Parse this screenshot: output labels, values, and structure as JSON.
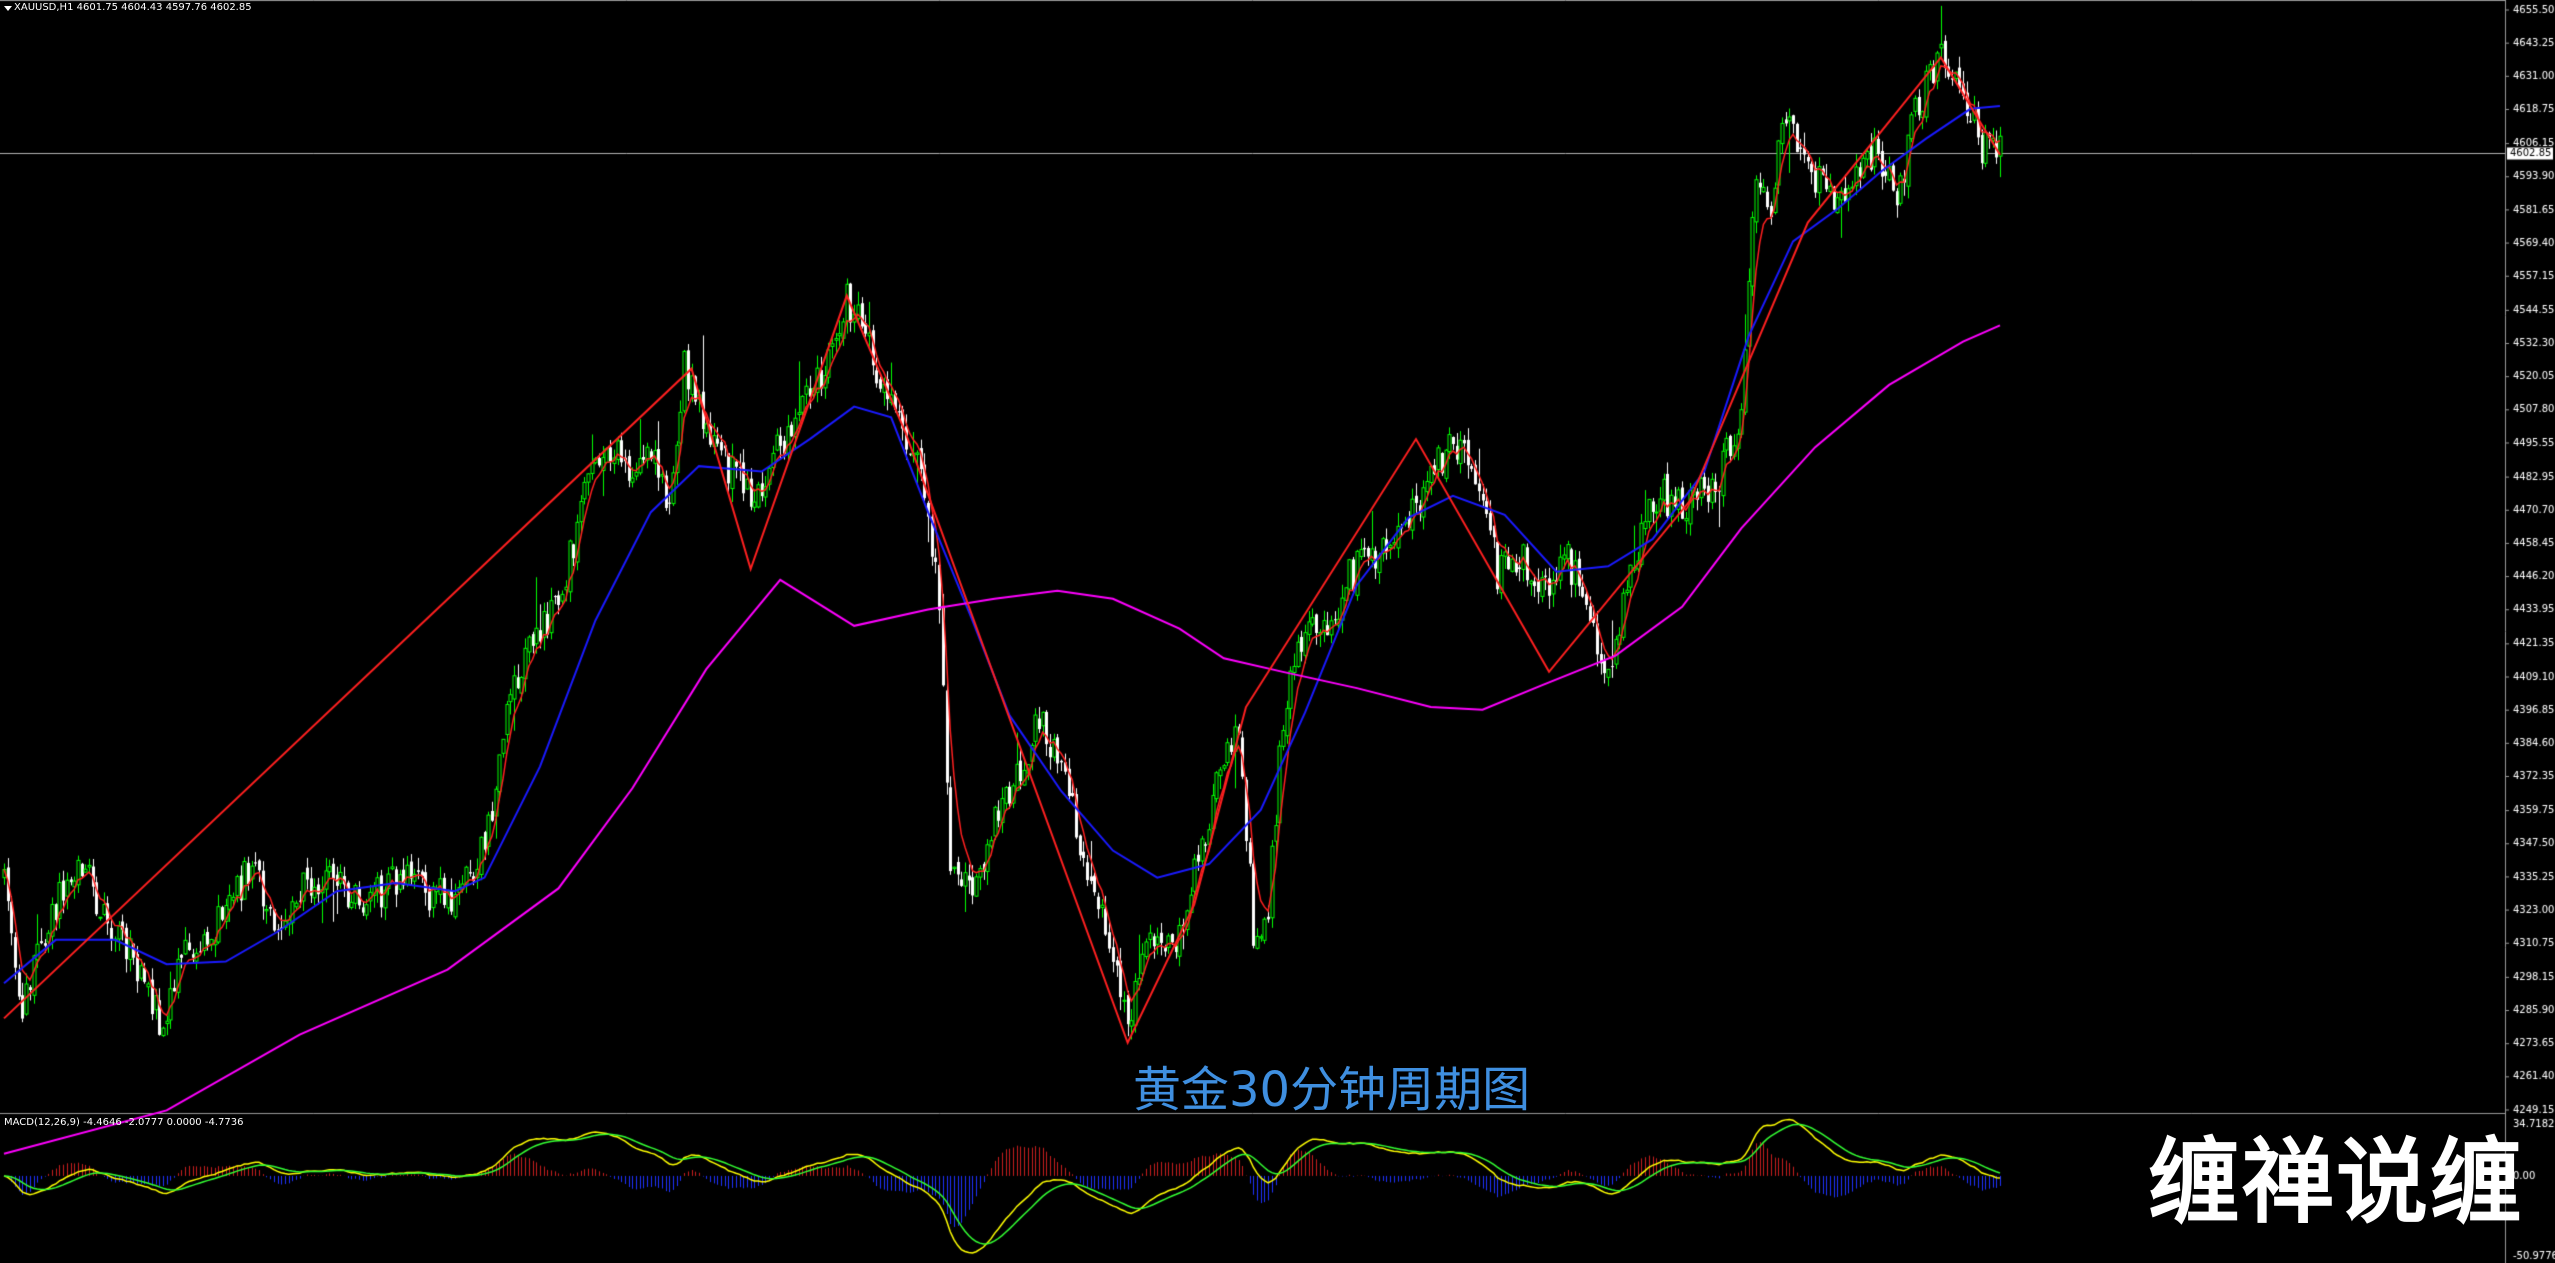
{
  "header": {
    "symbol": "XAUUSD,H1",
    "ohlc": "4601.75 4604.43 4597.76 4602.85"
  },
  "macd_header": "MACD(12,26,9) -4.4646 -2.0777 0.0000 -4.7736",
  "caption": "黄金30分钟周期图",
  "watermark": "缠禅说缠",
  "colors": {
    "background": "#000000",
    "bull": "#00ff00",
    "bear": "#ffffff",
    "ma_short": "#ff2020",
    "ma_mid": "#1a1aff",
    "ma_long": "#ff00ff",
    "zigzag": "#ff2020",
    "macd_pos": "#c81e1e",
    "macd_neg": "#1e32ff",
    "macd_line": "#ffff00",
    "signal_line": "#33ff33",
    "caption": "#3f8fe0"
  },
  "chart_data": [
    {
      "type": "candlestick",
      "ylim": [
        4249.15,
        4655.5
      ],
      "price_ticks": [
        "4655.50",
        "4643.25",
        "4631.00",
        "4618.75",
        "4606.15",
        "4593.90",
        "4581.65",
        "4569.40",
        "4557.15",
        "4544.55",
        "4532.30",
        "4520.05",
        "4507.80",
        "4495.55",
        "4482.95",
        "4470.70",
        "4458.45",
        "4446.20",
        "4433.95",
        "4421.35",
        "4409.10",
        "4396.85",
        "4384.60",
        "4372.35",
        "4359.75",
        "4347.50",
        "4335.25",
        "4323.00",
        "4310.75",
        "4298.15",
        "4285.90",
        "4273.65",
        "4261.40",
        "4249.15"
      ],
      "current_price": "4602.85",
      "anchors": [
        [
          0,
          4338
        ],
        [
          5,
          4288
        ],
        [
          12,
          4320
        ],
        [
          20,
          4343
        ],
        [
          28,
          4318
        ],
        [
          35,
          4307
        ],
        [
          42,
          4281
        ],
        [
          50,
          4310
        ],
        [
          58,
          4319
        ],
        [
          66,
          4338
        ],
        [
          74,
          4320
        ],
        [
          82,
          4334
        ],
        [
          90,
          4333
        ],
        [
          98,
          4327
        ],
        [
          106,
          4335
        ],
        [
          114,
          4330
        ],
        [
          122,
          4329
        ],
        [
          130,
          4345
        ],
        [
          136,
          4395
        ],
        [
          140,
          4413
        ],
        [
          146,
          4427
        ],
        [
          152,
          4448
        ],
        [
          158,
          4480
        ],
        [
          164,
          4493
        ],
        [
          170,
          4486
        ],
        [
          176,
          4488
        ],
        [
          180,
          4474
        ],
        [
          184,
          4523
        ],
        [
          190,
          4503
        ],
        [
          197,
          4484
        ],
        [
          203,
          4476
        ],
        [
          210,
          4496
        ],
        [
          216,
          4508
        ],
        [
          222,
          4521
        ],
        [
          228,
          4549
        ],
        [
          235,
          4527
        ],
        [
          242,
          4505
        ],
        [
          248,
          4482
        ],
        [
          253,
          4440
        ],
        [
          256,
          4340
        ],
        [
          262,
          4328
        ],
        [
          268,
          4355
        ],
        [
          274,
          4370
        ],
        [
          280,
          4395
        ],
        [
          286,
          4373
        ],
        [
          292,
          4345
        ],
        [
          298,
          4315
        ],
        [
          304,
          4277
        ],
        [
          310,
          4315
        ],
        [
          316,
          4305
        ],
        [
          322,
          4335
        ],
        [
          328,
          4372
        ],
        [
          334,
          4395
        ],
        [
          338,
          4315
        ],
        [
          342,
          4322
        ],
        [
          346,
          4395
        ],
        [
          352,
          4430
        ],
        [
          358,
          4427
        ],
        [
          364,
          4447
        ],
        [
          370,
          4452
        ],
        [
          376,
          4462
        ],
        [
          382,
          4472
        ],
        [
          388,
          4488
        ],
        [
          394,
          4498
        ],
        [
          400,
          4480
        ],
        [
          404,
          4448
        ],
        [
          410,
          4455
        ],
        [
          416,
          4439
        ],
        [
          422,
          4457
        ],
        [
          428,
          4434
        ],
        [
          434,
          4414
        ],
        [
          440,
          4445
        ],
        [
          446,
          4477
        ],
        [
          452,
          4474
        ],
        [
          458,
          4475
        ],
        [
          464,
          4484
        ],
        [
          470,
          4510
        ],
        [
          474,
          4593
        ],
        [
          478,
          4585
        ],
        [
          482,
          4618
        ],
        [
          488,
          4595
        ],
        [
          494,
          4588
        ],
        [
          500,
          4591
        ],
        [
          506,
          4603
        ],
        [
          512,
          4587
        ],
        [
          518,
          4622
        ],
        [
          524,
          4638
        ],
        [
          530,
          4625
        ],
        [
          535,
          4604
        ],
        [
          540,
          4602
        ]
      ],
      "ma_short_visible": true,
      "ma_mid_points": [
        [
          0,
          4296
        ],
        [
          14,
          4312
        ],
        [
          30,
          4312
        ],
        [
          44,
          4303
        ],
        [
          60,
          4304
        ],
        [
          74,
          4315
        ],
        [
          90,
          4330
        ],
        [
          106,
          4333
        ],
        [
          122,
          4330
        ],
        [
          130,
          4335
        ],
        [
          145,
          4376
        ],
        [
          160,
          4430
        ],
        [
          175,
          4470
        ],
        [
          188,
          4487
        ],
        [
          205,
          4485
        ],
        [
          218,
          4497
        ],
        [
          230,
          4509
        ],
        [
          240,
          4505
        ],
        [
          250,
          4470
        ],
        [
          262,
          4430
        ],
        [
          272,
          4395
        ],
        [
          286,
          4367
        ],
        [
          300,
          4345
        ],
        [
          312,
          4335
        ],
        [
          326,
          4340
        ],
        [
          340,
          4360
        ],
        [
          352,
          4396
        ],
        [
          366,
          4443
        ],
        [
          380,
          4468
        ],
        [
          392,
          4476
        ],
        [
          406,
          4469
        ],
        [
          420,
          4448
        ],
        [
          434,
          4450
        ],
        [
          446,
          4460
        ],
        [
          460,
          4485
        ],
        [
          472,
          4535
        ],
        [
          484,
          4570
        ],
        [
          496,
          4582
        ],
        [
          508,
          4596
        ],
        [
          520,
          4608
        ],
        [
          532,
          4619
        ],
        [
          540,
          4620
        ]
      ],
      "ma_long_points": [
        [
          0,
          4233
        ],
        [
          44,
          4249
        ],
        [
          80,
          4277
        ],
        [
          120,
          4301
        ],
        [
          150,
          4331
        ],
        [
          170,
          4368
        ],
        [
          190,
          4412
        ],
        [
          210,
          4445
        ],
        [
          230,
          4428
        ],
        [
          250,
          4434
        ],
        [
          268,
          4438
        ],
        [
          285,
          4441
        ],
        [
          300,
          4438
        ],
        [
          318,
          4427
        ],
        [
          330,
          4416
        ],
        [
          346,
          4411
        ],
        [
          366,
          4405
        ],
        [
          386,
          4398
        ],
        [
          400,
          4397
        ],
        [
          416,
          4406
        ],
        [
          436,
          4417
        ],
        [
          454,
          4435
        ],
        [
          470,
          4464
        ],
        [
          490,
          4494
        ],
        [
          510,
          4517
        ],
        [
          530,
          4533
        ],
        [
          540,
          4539
        ]
      ],
      "zigzag_points": [
        [
          0,
          4283
        ],
        [
          186,
          4523
        ],
        [
          202,
          4449
        ],
        [
          228,
          4550
        ],
        [
          244,
          4499
        ],
        [
          304,
          4274
        ],
        [
          322,
          4325
        ],
        [
          336,
          4398
        ],
        [
          382,
          4497
        ],
        [
          418,
          4411
        ],
        [
          456,
          4474
        ],
        [
          488,
          4577
        ],
        [
          524,
          4638
        ],
        [
          540,
          4602
        ]
      ]
    },
    {
      "type": "macd",
      "fast": 12,
      "slow": 26,
      "signal": 9,
      "ylim": [
        -50.9776,
        34.7182
      ],
      "ticks": [
        "34.7182",
        "0.00",
        "-50.9776"
      ],
      "values": {
        "macd": -4.4646,
        "signal": -2.0777,
        "histogram": 0.0,
        "last": -4.7736
      }
    }
  ]
}
